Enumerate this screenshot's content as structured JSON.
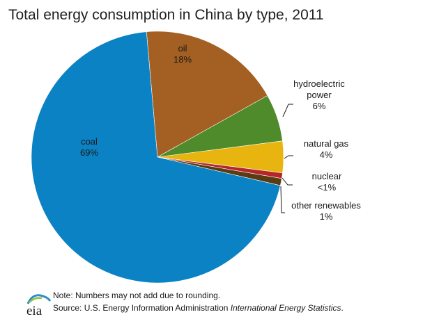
{
  "chart_data": {
    "type": "pie",
    "title": "Total energy consumption in China by type, 2011",
    "slices": [
      {
        "label": "coal",
        "value_label": "69%",
        "value": 69,
        "color": "#0a82c4"
      },
      {
        "label": "oil",
        "value_label": "18%",
        "value": 18,
        "color": "#a45f22"
      },
      {
        "label": "hydroelectric power",
        "label_lines": [
          "hydroelectric",
          "power"
        ],
        "value_label": "6%",
        "value": 6,
        "color": "#4f8a2b"
      },
      {
        "label": "natural gas",
        "value_label": "4%",
        "value": 4,
        "color": "#e8b510"
      },
      {
        "label": "nuclear",
        "value_label": "<1%",
        "value": 0.7,
        "color": "#b5262b"
      },
      {
        "label": "other renewables",
        "value_label": "1%",
        "value": 0.9,
        "color": "#5a3b12"
      }
    ]
  },
  "footer": {
    "note": "Note: Numbers may not add due to rounding.",
    "source_prefix": "Source: U.S. Energy Information  Administration ",
    "source_publication": "International Energy Statistics",
    "source_suffix": ".",
    "logo_text": "eia"
  }
}
